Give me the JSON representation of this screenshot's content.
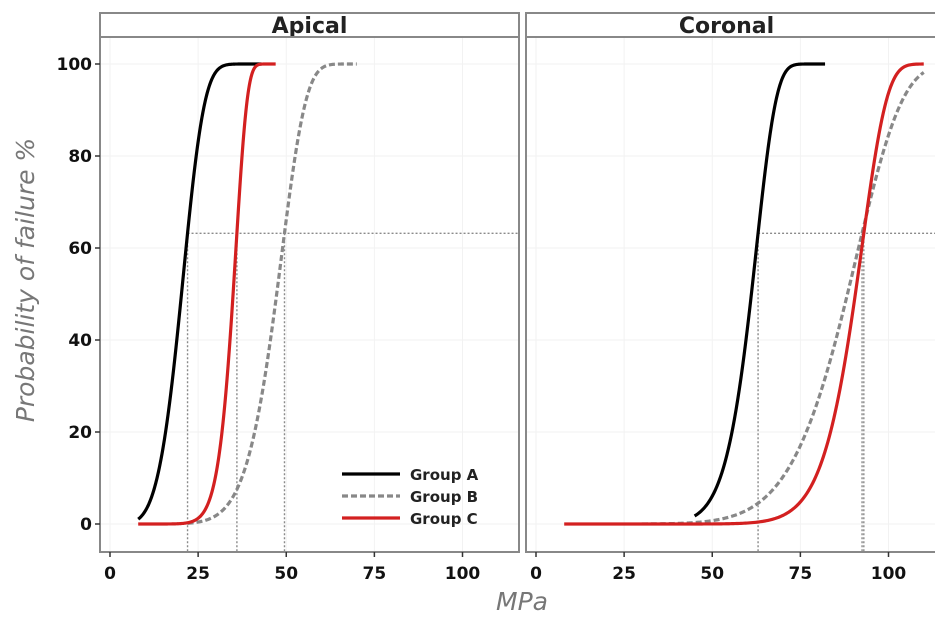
{
  "chart_data": {
    "type": "line",
    "xlabel": "MPa",
    "ylabel": "Probability of failure %",
    "xlim": [
      0,
      120
    ],
    "ylim": [
      -3,
      106
    ],
    "x_ticks": [
      "0",
      "25",
      "50",
      "75",
      "100"
    ],
    "y_ticks": [
      "0",
      "20",
      "40",
      "60",
      "80",
      "100"
    ],
    "legend_position": "bottom-right of first panel",
    "grid": true,
    "reference_probability": 63.2,
    "panels": [
      {
        "name": "Apical",
        "series": [
          {
            "name": "Group A",
            "color": "#000000",
            "dash": "solid",
            "weibull_scale": 22,
            "weibull_shape": 4.5,
            "x_range": [
              8,
              43
            ]
          },
          {
            "name": "Group B",
            "color": "#888888",
            "dash": "dashed",
            "weibull_scale": 49.5,
            "weibull_shape": 8,
            "x_range": [
              22,
              70
            ]
          },
          {
            "name": "Group C",
            "color": "#d32020",
            "dash": "solid",
            "weibull_scale": 36,
            "weibull_shape": 12,
            "x_range": [
              8,
              47
            ]
          }
        ],
        "reference_x": [
          22,
          36,
          49.5
        ]
      },
      {
        "name": "Coronal",
        "series": [
          {
            "name": "Group A",
            "color": "#000000",
            "dash": "solid",
            "weibull_scale": 63,
            "weibull_shape": 12,
            "x_range": [
              45,
              82
            ]
          },
          {
            "name": "Group B",
            "color": "#888888",
            "dash": "dashed",
            "weibull_scale": 92.5,
            "weibull_shape": 8,
            "x_range": [
              30,
              110
            ]
          },
          {
            "name": "Group C",
            "color": "#d32020",
            "dash": "solid",
            "weibull_scale": 93,
            "weibull_shape": 14,
            "x_range": [
              8,
              110
            ]
          }
        ],
        "reference_x": [
          63,
          92.5,
          93
        ]
      }
    ]
  }
}
